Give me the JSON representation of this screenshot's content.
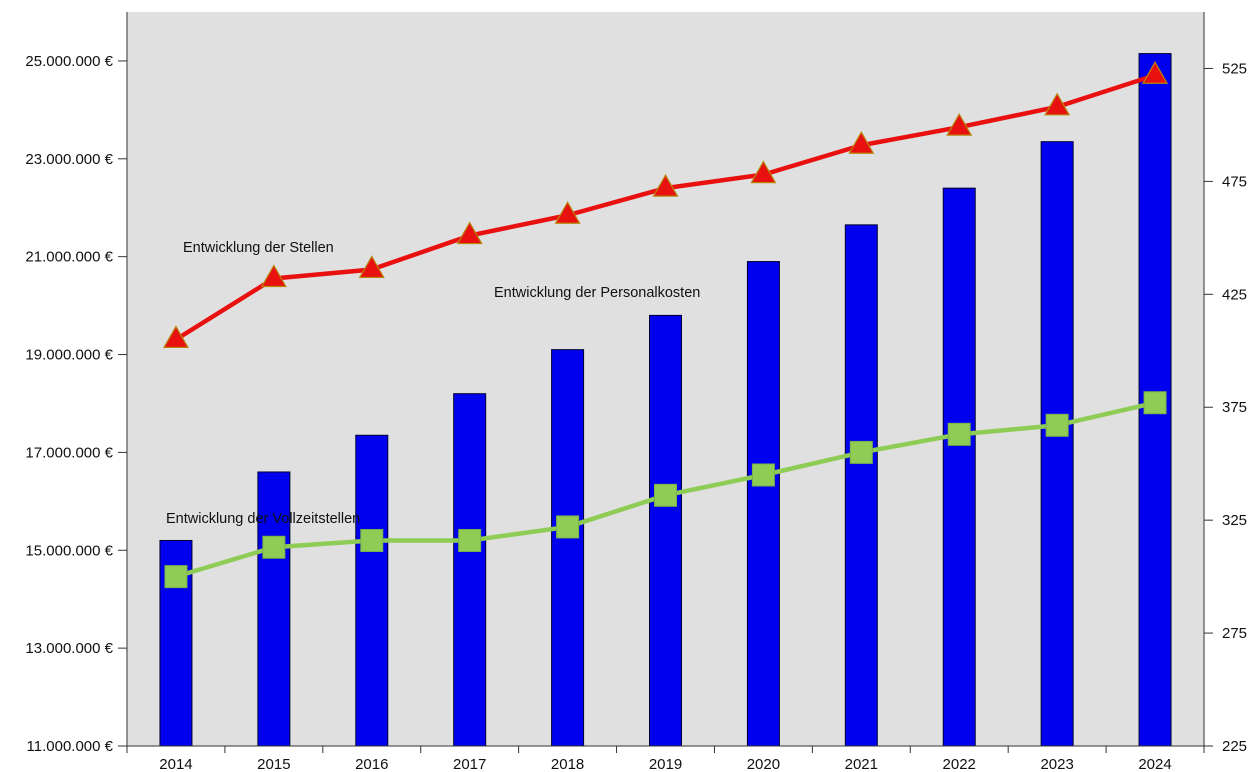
{
  "chart_data": {
    "type": "bar",
    "categories": [
      "2014",
      "2015",
      "2016",
      "2017",
      "2018",
      "2019",
      "2020",
      "2021",
      "2022",
      "2023",
      "2024"
    ],
    "bars": {
      "axis": "left",
      "color": "#0000EE",
      "values": [
        15200000,
        16600000,
        17350000,
        18200000,
        19100000,
        19800000,
        20900000,
        21650000,
        22400000,
        23350000,
        25150000
      ]
    },
    "lines": [
      {
        "axis": "right",
        "color": "#E8110F",
        "marker": "triangle",
        "values": [
          405,
          432,
          436,
          451,
          460,
          472,
          478,
          491,
          499,
          508,
          522
        ]
      },
      {
        "axis": "right",
        "color": "#8FCC55",
        "marker": "square",
        "values": [
          300,
          313,
          316,
          316,
          322,
          336,
          345,
          355,
          363,
          367,
          377
        ]
      }
    ],
    "annotations": [
      {
        "text": "Entwicklung der Stellen"
      },
      {
        "text": "Entwicklung der Personalkosten"
      },
      {
        "text": "Entwicklung der Vollzeitstellen"
      }
    ],
    "left_axis": {
      "ylim": [
        11000000,
        26000000
      ],
      "tick_values": [
        11000000,
        13000000,
        15000000,
        17000000,
        19000000,
        21000000,
        23000000,
        25000000
      ],
      "tick_labels": [
        "11.000.000 €",
        "13.000.000 €",
        "15.000.000 €",
        "17.000.000 €",
        "19.000.000 €",
        "21.000.000 €",
        "23.000.000 €",
        "25.000.000 €"
      ]
    },
    "right_axis": {
      "ylim": [
        225,
        550
      ],
      "tick_values": [
        225,
        275,
        325,
        375,
        425,
        475,
        525
      ],
      "tick_labels": [
        "225",
        "275",
        "325",
        "375",
        "425",
        "475",
        "525"
      ]
    },
    "grid": false,
    "plot_background": "#E0E0E0"
  }
}
